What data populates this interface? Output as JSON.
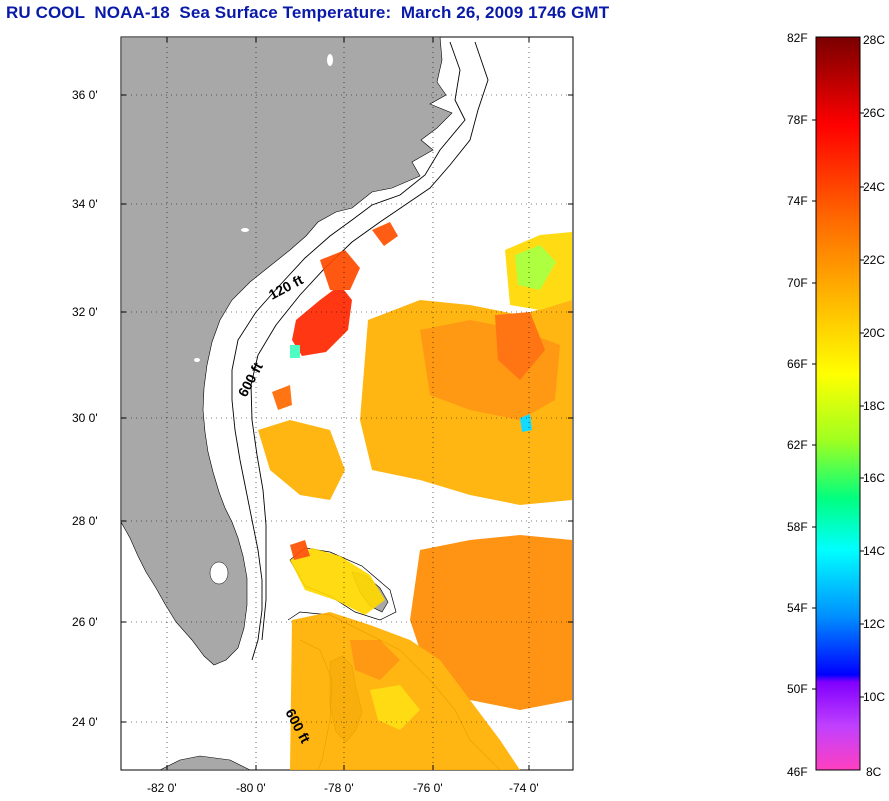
{
  "title": "RU COOL  NOAA-18  Sea Surface Temperature:  March 26, 2009 1746 GMT",
  "map": {
    "lat_labels": [
      "36 0'",
      "34 0'",
      "32 0'",
      "30 0'",
      "28 0'",
      "26 0'",
      "24 0'"
    ],
    "lon_labels": [
      "-82 0'",
      "-80 0'",
      "-78 0'",
      "-76 0'",
      "-74 0'"
    ],
    "contour_labels": [
      "120 ft",
      "600 ft",
      "600 ft"
    ],
    "land_color": "#a8a8a8",
    "ocean_color": "#ffffff"
  },
  "colorbar": {
    "fahrenheit_labels": [
      "82F",
      "78F",
      "74F",
      "70F",
      "66F",
      "62F",
      "58F",
      "54F",
      "50F",
      "46F"
    ],
    "celsius_labels": [
      "28C",
      "26C",
      "24C",
      "22C",
      "20C",
      "18C",
      "16C",
      "14C",
      "12C",
      "10C",
      "8C"
    ]
  }
}
